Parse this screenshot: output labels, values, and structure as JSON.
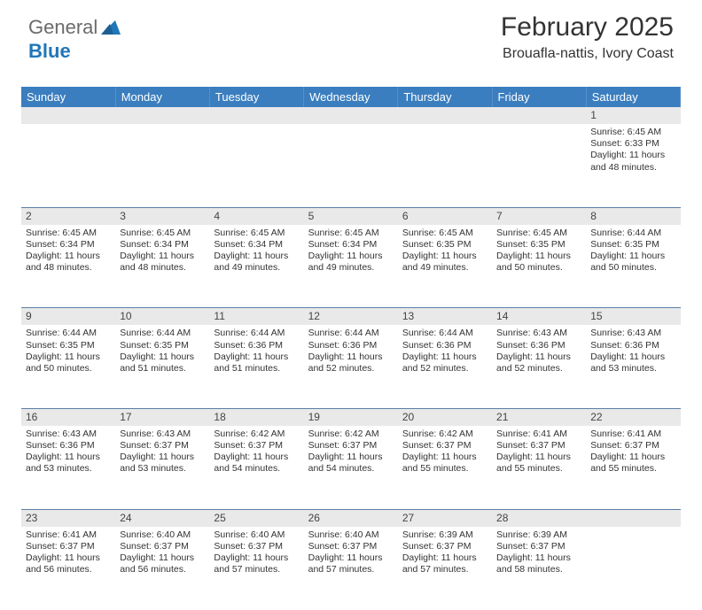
{
  "logo": {
    "part1": "General",
    "part2": "Blue"
  },
  "header": {
    "month": "February 2025",
    "location": "Brouafla-nattis, Ivory Coast"
  },
  "colors": {
    "header_bg": "#3a7ebf",
    "header_text": "#ffffff",
    "daynum_bg": "#e9e9e9",
    "border": "#5a7fa8",
    "text": "#333333",
    "logo_gray": "#6b6b6b",
    "logo_blue": "#2176b8"
  },
  "days": [
    "Sunday",
    "Monday",
    "Tuesday",
    "Wednesday",
    "Thursday",
    "Friday",
    "Saturday"
  ],
  "weeks": [
    [
      {
        "n": "",
        "sr": "",
        "ss": "",
        "dl": ""
      },
      {
        "n": "",
        "sr": "",
        "ss": "",
        "dl": ""
      },
      {
        "n": "",
        "sr": "",
        "ss": "",
        "dl": ""
      },
      {
        "n": "",
        "sr": "",
        "ss": "",
        "dl": ""
      },
      {
        "n": "",
        "sr": "",
        "ss": "",
        "dl": ""
      },
      {
        "n": "",
        "sr": "",
        "ss": "",
        "dl": ""
      },
      {
        "n": "1",
        "sr": "Sunrise: 6:45 AM",
        "ss": "Sunset: 6:33 PM",
        "dl": "Daylight: 11 hours and 48 minutes."
      }
    ],
    [
      {
        "n": "2",
        "sr": "Sunrise: 6:45 AM",
        "ss": "Sunset: 6:34 PM",
        "dl": "Daylight: 11 hours and 48 minutes."
      },
      {
        "n": "3",
        "sr": "Sunrise: 6:45 AM",
        "ss": "Sunset: 6:34 PM",
        "dl": "Daylight: 11 hours and 48 minutes."
      },
      {
        "n": "4",
        "sr": "Sunrise: 6:45 AM",
        "ss": "Sunset: 6:34 PM",
        "dl": "Daylight: 11 hours and 49 minutes."
      },
      {
        "n": "5",
        "sr": "Sunrise: 6:45 AM",
        "ss": "Sunset: 6:34 PM",
        "dl": "Daylight: 11 hours and 49 minutes."
      },
      {
        "n": "6",
        "sr": "Sunrise: 6:45 AM",
        "ss": "Sunset: 6:35 PM",
        "dl": "Daylight: 11 hours and 49 minutes."
      },
      {
        "n": "7",
        "sr": "Sunrise: 6:45 AM",
        "ss": "Sunset: 6:35 PM",
        "dl": "Daylight: 11 hours and 50 minutes."
      },
      {
        "n": "8",
        "sr": "Sunrise: 6:44 AM",
        "ss": "Sunset: 6:35 PM",
        "dl": "Daylight: 11 hours and 50 minutes."
      }
    ],
    [
      {
        "n": "9",
        "sr": "Sunrise: 6:44 AM",
        "ss": "Sunset: 6:35 PM",
        "dl": "Daylight: 11 hours and 50 minutes."
      },
      {
        "n": "10",
        "sr": "Sunrise: 6:44 AM",
        "ss": "Sunset: 6:35 PM",
        "dl": "Daylight: 11 hours and 51 minutes."
      },
      {
        "n": "11",
        "sr": "Sunrise: 6:44 AM",
        "ss": "Sunset: 6:36 PM",
        "dl": "Daylight: 11 hours and 51 minutes."
      },
      {
        "n": "12",
        "sr": "Sunrise: 6:44 AM",
        "ss": "Sunset: 6:36 PM",
        "dl": "Daylight: 11 hours and 52 minutes."
      },
      {
        "n": "13",
        "sr": "Sunrise: 6:44 AM",
        "ss": "Sunset: 6:36 PM",
        "dl": "Daylight: 11 hours and 52 minutes."
      },
      {
        "n": "14",
        "sr": "Sunrise: 6:43 AM",
        "ss": "Sunset: 6:36 PM",
        "dl": "Daylight: 11 hours and 52 minutes."
      },
      {
        "n": "15",
        "sr": "Sunrise: 6:43 AM",
        "ss": "Sunset: 6:36 PM",
        "dl": "Daylight: 11 hours and 53 minutes."
      }
    ],
    [
      {
        "n": "16",
        "sr": "Sunrise: 6:43 AM",
        "ss": "Sunset: 6:36 PM",
        "dl": "Daylight: 11 hours and 53 minutes."
      },
      {
        "n": "17",
        "sr": "Sunrise: 6:43 AM",
        "ss": "Sunset: 6:37 PM",
        "dl": "Daylight: 11 hours and 53 minutes."
      },
      {
        "n": "18",
        "sr": "Sunrise: 6:42 AM",
        "ss": "Sunset: 6:37 PM",
        "dl": "Daylight: 11 hours and 54 minutes."
      },
      {
        "n": "19",
        "sr": "Sunrise: 6:42 AM",
        "ss": "Sunset: 6:37 PM",
        "dl": "Daylight: 11 hours and 54 minutes."
      },
      {
        "n": "20",
        "sr": "Sunrise: 6:42 AM",
        "ss": "Sunset: 6:37 PM",
        "dl": "Daylight: 11 hours and 55 minutes."
      },
      {
        "n": "21",
        "sr": "Sunrise: 6:41 AM",
        "ss": "Sunset: 6:37 PM",
        "dl": "Daylight: 11 hours and 55 minutes."
      },
      {
        "n": "22",
        "sr": "Sunrise: 6:41 AM",
        "ss": "Sunset: 6:37 PM",
        "dl": "Daylight: 11 hours and 55 minutes."
      }
    ],
    [
      {
        "n": "23",
        "sr": "Sunrise: 6:41 AM",
        "ss": "Sunset: 6:37 PM",
        "dl": "Daylight: 11 hours and 56 minutes."
      },
      {
        "n": "24",
        "sr": "Sunrise: 6:40 AM",
        "ss": "Sunset: 6:37 PM",
        "dl": "Daylight: 11 hours and 56 minutes."
      },
      {
        "n": "25",
        "sr": "Sunrise: 6:40 AM",
        "ss": "Sunset: 6:37 PM",
        "dl": "Daylight: 11 hours and 57 minutes."
      },
      {
        "n": "26",
        "sr": "Sunrise: 6:40 AM",
        "ss": "Sunset: 6:37 PM",
        "dl": "Daylight: 11 hours and 57 minutes."
      },
      {
        "n": "27",
        "sr": "Sunrise: 6:39 AM",
        "ss": "Sunset: 6:37 PM",
        "dl": "Daylight: 11 hours and 57 minutes."
      },
      {
        "n": "28",
        "sr": "Sunrise: 6:39 AM",
        "ss": "Sunset: 6:37 PM",
        "dl": "Daylight: 11 hours and 58 minutes."
      },
      {
        "n": "",
        "sr": "",
        "ss": "",
        "dl": ""
      }
    ]
  ]
}
